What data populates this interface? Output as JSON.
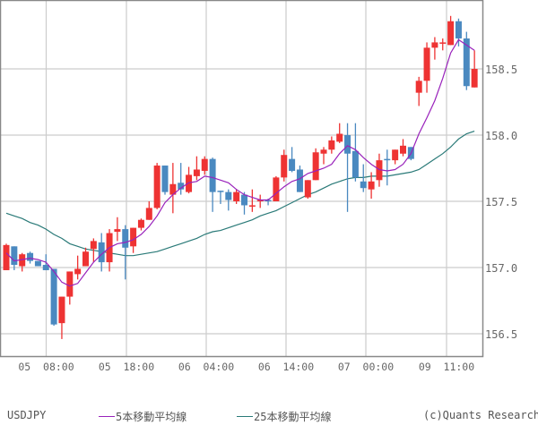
{
  "symbol": "USDJPY",
  "copyright": "(c)Quants Research",
  "legend": [
    {
      "label": "5本移動平均線",
      "color": "#9922BB"
    },
    {
      "label": "25本移動平均線",
      "color": "#2A7A78"
    }
  ],
  "colors": {
    "up": "#EE3333",
    "down": "#4A89C0",
    "grid": "#CCCCCC",
    "border": "#888888",
    "ma5": "#9922BB",
    "ma25": "#2A7A78"
  },
  "chart_data": {
    "type": "candlestick",
    "title": "USDJPY",
    "xlabel": "",
    "ylabel": "",
    "ylim": [
      156.35,
      158.98
    ],
    "y_ticks": [
      156.5,
      157.0,
      157.5,
      158.0,
      158.5
    ],
    "y_tick_labels": [
      "156.5",
      "157.0",
      "157.5",
      "158.0",
      "158.5"
    ],
    "x_tick_labels": [
      {
        "label": "05  08:00",
        "index": 5
      },
      {
        "label": "05  18:00",
        "index": 15
      },
      {
        "label": "06  04:00",
        "index": 25
      },
      {
        "label": "06  14:00",
        "index": 35
      },
      {
        "label": "07  00:00",
        "index": 45
      },
      {
        "label": "09  11:00",
        "index": 55
      }
    ],
    "grid": true,
    "legend_position": "bottom",
    "series": [
      {
        "name": "USDJPY",
        "type": "candlestick",
        "ohlc": [
          [
            156.98,
            157.18,
            156.98,
            157.17
          ],
          [
            157.16,
            157.16,
            156.98,
            157.02
          ],
          [
            157.01,
            157.11,
            156.97,
            157.1
          ],
          [
            157.11,
            157.12,
            157.03,
            157.05
          ],
          [
            157.05,
            157.05,
            157.01,
            157.01
          ],
          [
            157.02,
            157.1,
            156.98,
            156.98
          ],
          [
            156.99,
            156.99,
            156.56,
            156.57
          ],
          [
            156.58,
            156.78,
            156.46,
            156.78
          ],
          [
            156.78,
            156.97,
            156.72,
            156.97
          ],
          [
            156.95,
            157.09,
            156.91,
            156.99
          ],
          [
            157.01,
            157.15,
            157.01,
            157.12
          ],
          [
            157.14,
            157.22,
            157.04,
            157.2
          ],
          [
            157.19,
            157.26,
            156.97,
            157.04
          ],
          [
            157.04,
            157.29,
            156.97,
            157.26
          ],
          [
            157.27,
            157.38,
            157.2,
            157.29
          ],
          [
            157.29,
            157.32,
            156.91,
            157.15
          ],
          [
            157.16,
            157.3,
            157.11,
            157.3
          ],
          [
            157.3,
            157.37,
            157.28,
            157.36
          ],
          [
            157.36,
            157.5,
            157.36,
            157.45
          ],
          [
            157.45,
            157.79,
            157.44,
            157.77
          ],
          [
            157.77,
            157.77,
            157.55,
            157.57
          ],
          [
            157.55,
            157.79,
            157.41,
            157.63
          ],
          [
            157.64,
            157.79,
            157.55,
            157.59
          ],
          [
            157.57,
            157.76,
            157.56,
            157.7
          ],
          [
            157.69,
            157.84,
            157.66,
            157.74
          ],
          [
            157.73,
            157.84,
            157.7,
            157.82
          ],
          [
            157.82,
            157.83,
            157.42,
            157.57
          ],
          [
            157.58,
            157.58,
            157.48,
            157.57
          ],
          [
            157.57,
            157.59,
            157.43,
            157.51
          ],
          [
            157.5,
            157.59,
            157.48,
            157.57
          ],
          [
            157.55,
            157.57,
            157.4,
            157.47
          ],
          [
            157.46,
            157.59,
            157.42,
            157.47
          ],
          [
            157.5,
            157.55,
            157.45,
            157.51
          ],
          [
            157.51,
            157.52,
            157.47,
            157.5
          ],
          [
            157.5,
            157.69,
            157.5,
            157.68
          ],
          [
            157.68,
            157.89,
            157.65,
            157.85
          ],
          [
            157.82,
            157.91,
            157.72,
            157.73
          ],
          [
            157.74,
            157.77,
            157.57,
            157.57
          ],
          [
            157.53,
            157.66,
            157.52,
            157.66
          ],
          [
            157.66,
            157.9,
            157.66,
            157.87
          ],
          [
            157.86,
            157.91,
            157.78,
            157.89
          ],
          [
            157.89,
            157.99,
            157.86,
            157.96
          ],
          [
            157.95,
            158.09,
            157.94,
            158.01
          ],
          [
            158.0,
            158.09,
            157.42,
            157.86
          ],
          [
            157.88,
            158.09,
            157.65,
            157.68
          ],
          [
            157.65,
            157.78,
            157.57,
            157.6
          ],
          [
            157.59,
            157.72,
            157.52,
            157.65
          ],
          [
            157.66,
            157.86,
            157.61,
            157.81
          ],
          [
            157.82,
            157.89,
            157.62,
            157.81
          ],
          [
            157.81,
            157.89,
            157.78,
            157.89
          ],
          [
            157.86,
            157.97,
            157.84,
            157.92
          ],
          [
            157.91,
            157.91,
            157.81,
            157.82
          ],
          [
            158.32,
            158.44,
            158.22,
            158.41
          ],
          [
            158.41,
            158.7,
            158.32,
            158.66
          ],
          [
            158.66,
            158.74,
            158.57,
            158.7
          ],
          [
            158.69,
            158.73,
            158.64,
            158.7
          ],
          [
            158.68,
            158.9,
            158.68,
            158.86
          ],
          [
            158.86,
            158.88,
            158.67,
            158.73
          ],
          [
            158.73,
            158.78,
            158.34,
            158.37
          ],
          [
            158.36,
            158.64,
            158.36,
            158.5
          ]
        ]
      },
      {
        "name": "5本移動平均線",
        "type": "line",
        "values": [
          157.11,
          157.05,
          157.06,
          157.07,
          157.06,
          157.04,
          156.97,
          156.89,
          156.86,
          156.88,
          156.96,
          157.04,
          157.1,
          157.15,
          157.18,
          157.19,
          157.21,
          157.25,
          157.31,
          157.39,
          157.49,
          157.55,
          157.6,
          157.64,
          157.65,
          157.69,
          157.68,
          157.66,
          157.64,
          157.59,
          157.55,
          157.53,
          157.51,
          157.51,
          157.56,
          157.61,
          157.65,
          157.67,
          157.71,
          157.73,
          157.75,
          157.78,
          157.86,
          157.92,
          157.89,
          157.83,
          157.78,
          157.74,
          157.73,
          157.74,
          157.78,
          157.86,
          158.01,
          158.13,
          158.26,
          158.43,
          158.62,
          158.72,
          158.68,
          158.64
        ]
      },
      {
        "name": "25本移動平均線",
        "type": "line",
        "values": [
          157.41,
          157.39,
          157.37,
          157.34,
          157.32,
          157.29,
          157.25,
          157.22,
          157.18,
          157.16,
          157.14,
          157.13,
          157.12,
          157.11,
          157.1,
          157.09,
          157.09,
          157.1,
          157.11,
          157.12,
          157.14,
          157.16,
          157.18,
          157.2,
          157.22,
          157.25,
          157.27,
          157.28,
          157.3,
          157.32,
          157.34,
          157.36,
          157.39,
          157.41,
          157.43,
          157.46,
          157.49,
          157.52,
          157.55,
          157.57,
          157.6,
          157.63,
          157.65,
          157.67,
          157.68,
          157.68,
          157.69,
          157.69,
          157.69,
          157.7,
          157.71,
          157.72,
          157.74,
          157.78,
          157.82,
          157.86,
          157.91,
          157.97,
          158.01,
          158.03
        ]
      }
    ]
  }
}
